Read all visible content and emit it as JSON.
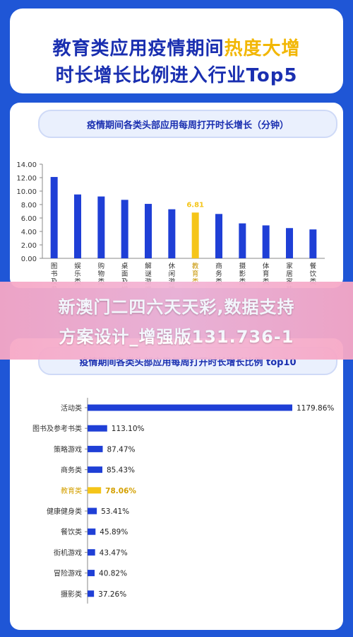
{
  "header": {
    "line1_part1": "教育类应用疫情期间",
    "line1_highlight": "热度大增",
    "line2": "时长增长比例进入行业Top5"
  },
  "chart1_title": "疫情期间各类头部应用每周打开时长增长（分钟）",
  "chart2_title": "疫情期间各类头部应用每周打开时长增长比例 top10",
  "banner": {
    "line1": "新澳门二四六天天彩,数据支持",
    "line2": "方案设计_增强版131.736-1"
  },
  "colors": {
    "bar": "#1f3fd6",
    "highlight": "#f5c518",
    "pill_bg": "#eaf0fd"
  },
  "chart_data": [
    {
      "type": "bar",
      "categories": [
        "图书及参考",
        "娱乐类",
        "购物类",
        "桌面及增强",
        "解谜游戏",
        "休闲游戏",
        "教育类",
        "商务类",
        "摄影类",
        "体育类",
        "家居类",
        "餐饮类"
      ],
      "tick_labels": [
        "图书及参",
        "娱乐类",
        "购物类",
        "桌面及增",
        "解谜游戏",
        "休闲游戏",
        "教育类",
        "商务类",
        "摄影类",
        "体育类",
        "家居家装",
        "餐饮类"
      ],
      "values": [
        12.1,
        9.5,
        9.2,
        8.7,
        8.1,
        7.3,
        6.81,
        6.6,
        5.2,
        4.9,
        4.5,
        4.3
      ],
      "highlight_index": 6,
      "highlight_label": "6.81",
      "ylim": [
        0,
        14
      ],
      "yticks": [
        "0.00",
        "2.00",
        "4.00",
        "6.00",
        "8.00",
        "10.00",
        "12.00",
        "14.00"
      ]
    },
    {
      "type": "bar",
      "orientation": "horizontal",
      "categories": [
        "活动类",
        "图书及参考书类",
        "策略游戏",
        "商务类",
        "教育类",
        "健康健身类",
        "餐饮类",
        "街机游戏",
        "冒险游戏",
        "摄影类"
      ],
      "values": [
        1179.86,
        113.1,
        87.47,
        85.43,
        78.06,
        53.41,
        45.89,
        43.47,
        40.82,
        37.26
      ],
      "labels": [
        "1179.86%",
        "113.10%",
        "87.47%",
        "85.43%",
        "78.06%",
        "53.41%",
        "45.89%",
        "43.47%",
        "40.82%",
        "37.26%"
      ],
      "highlight_index": 4
    }
  ]
}
